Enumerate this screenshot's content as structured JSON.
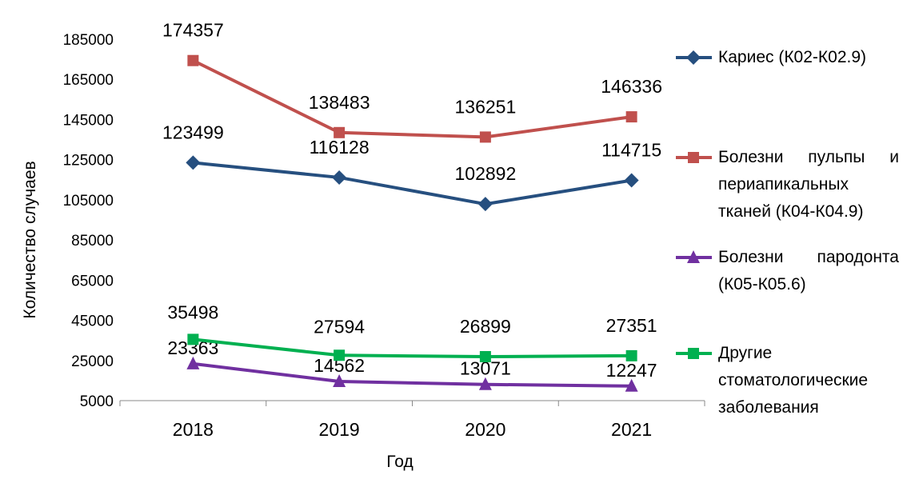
{
  "chart_data": {
    "type": "line",
    "title": "",
    "xlabel": "Год",
    "ylabel": "Количество случаев",
    "categories": [
      "2018",
      "2019",
      "2020",
      "2021"
    ],
    "ylim": [
      5000,
      185000
    ],
    "yticks": [
      5000,
      25000,
      45000,
      65000,
      85000,
      105000,
      125000,
      145000,
      165000,
      185000
    ],
    "grid": false,
    "legend_position": "right",
    "series": [
      {
        "name": "Кариес (К02-К02.9)",
        "values": [
          123499,
          116128,
          102892,
          114715
        ],
        "color": "#264f7f",
        "marker": "diamond"
      },
      {
        "name": "Болезни пульпы и периапикальных тканей (К04-К04.9)",
        "values": [
          174357,
          138483,
          136251,
          146336
        ],
        "color": "#c0504d",
        "marker": "square"
      },
      {
        "name": "Болезни пародонта (К05-К05.6)",
        "values": [
          23363,
          14562,
          13071,
          12247
        ],
        "color": "#7030a0",
        "marker": "triangle"
      },
      {
        "name": "Другие стоматологические заболевания",
        "values": [
          35498,
          27594,
          26899,
          27351
        ],
        "color": "#00b050",
        "marker": "square"
      }
    ]
  }
}
